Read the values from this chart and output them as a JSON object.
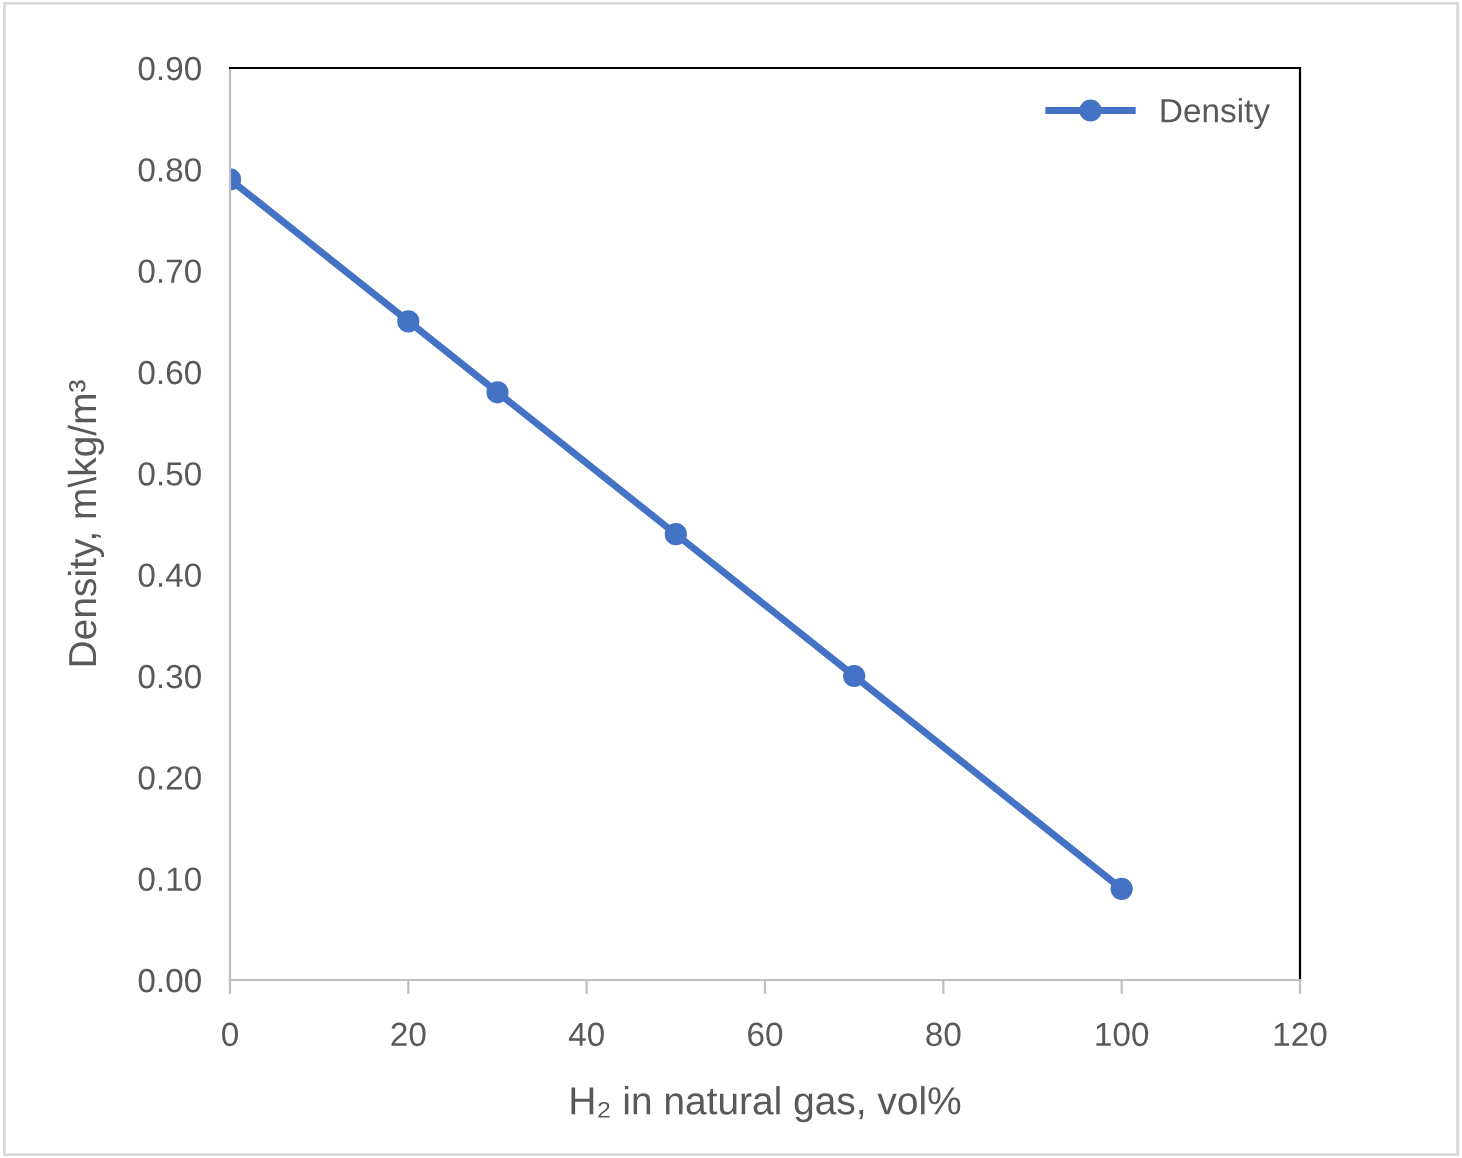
{
  "chart_data": {
    "type": "line",
    "xlabel": "H₂ in natural gas, vol%",
    "ylabel": "Density, m\\kg/m³",
    "x": [
      0,
      20,
      30,
      50,
      70,
      100
    ],
    "series": [
      {
        "name": "Density",
        "color": "#4472c4",
        "values": [
          0.79,
          0.65,
          0.58,
          0.44,
          0.3,
          0.09
        ]
      }
    ],
    "xlim": [
      0,
      120
    ],
    "xticks": [
      0,
      20,
      40,
      60,
      80,
      100,
      120
    ],
    "ylim": [
      0,
      0.9
    ],
    "yticks": [
      {
        "value": 0,
        "label": "0.00"
      },
      {
        "value": 0.1,
        "label": "0.10"
      },
      {
        "value": 0.2,
        "label": "0.20"
      },
      {
        "value": 0.3,
        "label": "0.30"
      },
      {
        "value": 0.4,
        "label": "0.40"
      },
      {
        "value": 0.5,
        "label": "0.50"
      },
      {
        "value": 0.6,
        "label": "0.60"
      },
      {
        "value": 0.7,
        "label": "0.70"
      },
      {
        "value": 0.8,
        "label": "0.80"
      },
      {
        "value": 0.9,
        "label": "0.90"
      }
    ],
    "grid": false,
    "legend": "top right",
    "marker": "circle",
    "line_style": "solid"
  }
}
